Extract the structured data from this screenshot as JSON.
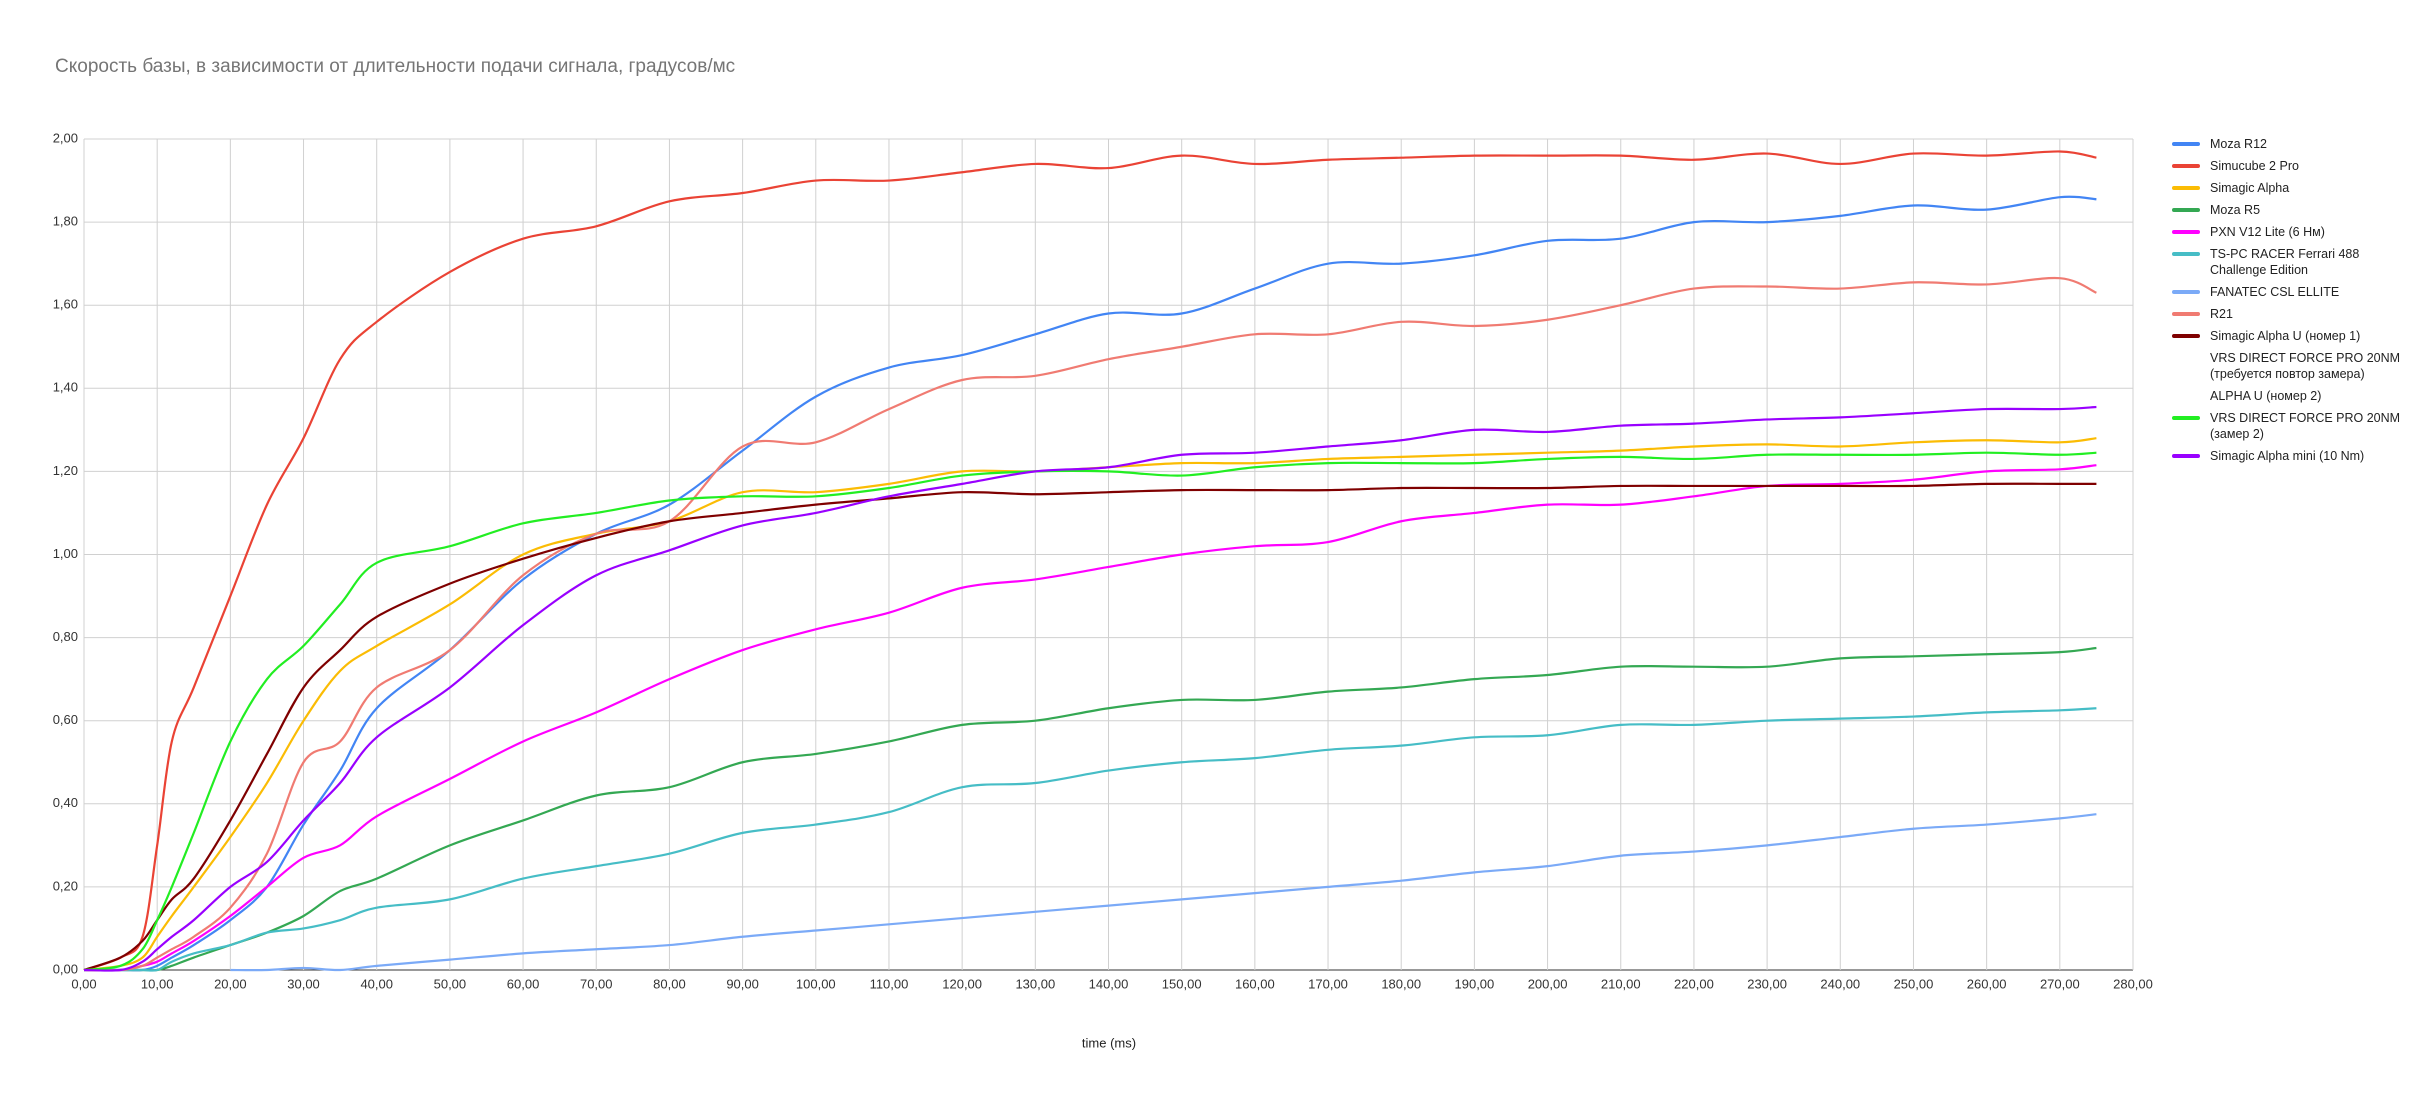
{
  "chart_data": {
    "type": "line",
    "title": "Скорость базы, в зависимости от длительности подачи сигнала, градусов/мс",
    "x_label": "time (ms)",
    "x": [
      0,
      5,
      8,
      10,
      12,
      15,
      20,
      25,
      30,
      35,
      40,
      50,
      60,
      70,
      80,
      90,
      100,
      110,
      120,
      130,
      140,
      150,
      160,
      170,
      180,
      190,
      200,
      210,
      220,
      230,
      240,
      250,
      260,
      270,
      275
    ],
    "xlim": [
      0,
      280
    ],
    "xticks": [
      {
        "value": 0,
        "label": "0,00"
      },
      {
        "value": 10,
        "label": "10,00"
      },
      {
        "value": 20,
        "label": "20,00"
      },
      {
        "value": 30,
        "label": "30,00"
      },
      {
        "value": 40,
        "label": "40,00"
      },
      {
        "value": 50,
        "label": "50,00"
      },
      {
        "value": 60,
        "label": "60,00"
      },
      {
        "value": 70,
        "label": "70,00"
      },
      {
        "value": 80,
        "label": "80,00"
      },
      {
        "value": 90,
        "label": "90,00"
      },
      {
        "value": 100,
        "label": "100,00"
      },
      {
        "value": 110,
        "label": "110,00"
      },
      {
        "value": 120,
        "label": "120,00"
      },
      {
        "value": 130,
        "label": "130,00"
      },
      {
        "value": 140,
        "label": "140,00"
      },
      {
        "value": 150,
        "label": "150,00"
      },
      {
        "value": 160,
        "label": "160,00"
      },
      {
        "value": 170,
        "label": "170,00"
      },
      {
        "value": 180,
        "label": "180,00"
      },
      {
        "value": 190,
        "label": "190,00"
      },
      {
        "value": 200,
        "label": "200,00"
      },
      {
        "value": 210,
        "label": "210,00"
      },
      {
        "value": 220,
        "label": "220,00"
      },
      {
        "value": 230,
        "label": "230,00"
      },
      {
        "value": 240,
        "label": "240,00"
      },
      {
        "value": 250,
        "label": "250,00"
      },
      {
        "value": 260,
        "label": "260,00"
      },
      {
        "value": 270,
        "label": "270,00"
      },
      {
        "value": 280,
        "label": "280,00"
      }
    ],
    "ylim": [
      0,
      2
    ],
    "yticks": [
      {
        "value": 0,
        "label": "0,00"
      },
      {
        "value": 0.2,
        "label": "0,20"
      },
      {
        "value": 0.4,
        "label": "0,40"
      },
      {
        "value": 0.6,
        "label": "0,60"
      },
      {
        "value": 0.8,
        "label": "0,80"
      },
      {
        "value": 1,
        "label": "1,00"
      },
      {
        "value": 1.2,
        "label": "1,20"
      },
      {
        "value": 1.4,
        "label": "1,40"
      },
      {
        "value": 1.6,
        "label": "1,60"
      },
      {
        "value": 1.8,
        "label": "1,80"
      },
      {
        "value": 2,
        "label": "2,00"
      }
    ],
    "grid": true,
    "legend": "right",
    "series": [
      {
        "name": "Moza R12",
        "color": "#4285f4",
        "values": [
          0,
          0,
          0,
          0.01,
          0.03,
          0.06,
          0.12,
          0.2,
          0.35,
          0.48,
          0.63,
          0.77,
          0.94,
          1.05,
          1.12,
          1.25,
          1.38,
          1.45,
          1.48,
          1.53,
          1.58,
          1.58,
          1.64,
          1.7,
          1.7,
          1.72,
          1.755,
          1.76,
          1.8,
          1.8,
          1.815,
          1.84,
          1.83,
          1.86,
          1.855
        ]
      },
      {
        "name": "Simucube 2 Pro",
        "color": "#ea4335",
        "values": [
          0,
          0.03,
          0.08,
          0.3,
          0.55,
          0.68,
          0.9,
          1.12,
          1.28,
          1.47,
          1.56,
          1.68,
          1.76,
          1.79,
          1.85,
          1.87,
          1.9,
          1.9,
          1.92,
          1.94,
          1.93,
          1.96,
          1.94,
          1.95,
          1.955,
          1.96,
          1.96,
          1.96,
          1.95,
          1.965,
          1.94,
          1.965,
          1.96,
          1.97,
          1.955
        ]
      },
      {
        "name": "Simagic Alpha",
        "color": "#fbbc04",
        "values": [
          0,
          0.01,
          0.03,
          0.08,
          0.13,
          0.2,
          0.32,
          0.45,
          0.6,
          0.72,
          0.78,
          0.88,
          1.0,
          1.05,
          1.08,
          1.15,
          1.15,
          1.17,
          1.2,
          1.2,
          1.21,
          1.22,
          1.22,
          1.23,
          1.235,
          1.24,
          1.245,
          1.25,
          1.26,
          1.265,
          1.26,
          1.27,
          1.275,
          1.27,
          1.28
        ]
      },
      {
        "name": "Moza R5",
        "color": "#34a853",
        "values": [
          0,
          0,
          0,
          0,
          0.01,
          0.03,
          0.06,
          0.09,
          0.13,
          0.19,
          0.22,
          0.3,
          0.36,
          0.42,
          0.44,
          0.5,
          0.52,
          0.55,
          0.59,
          0.6,
          0.63,
          0.65,
          0.65,
          0.67,
          0.68,
          0.7,
          0.71,
          0.73,
          0.73,
          0.73,
          0.75,
          0.755,
          0.76,
          0.765,
          0.775
        ]
      },
      {
        "name": "PXN V12 Lite (6 Нм)",
        "color": "#ff00ff",
        "values": [
          0,
          0,
          0.01,
          0.02,
          0.04,
          0.07,
          0.13,
          0.2,
          0.27,
          0.3,
          0.37,
          0.46,
          0.55,
          0.62,
          0.7,
          0.77,
          0.82,
          0.86,
          0.92,
          0.94,
          0.97,
          1.0,
          1.02,
          1.03,
          1.08,
          1.1,
          1.12,
          1.12,
          1.14,
          1.165,
          1.17,
          1.18,
          1.2,
          1.205,
          1.215
        ]
      },
      {
        "name": "TS-PC RACER Ferrari 488 Challenge Edition",
        "color": "#46bdc6",
        "values": [
          0,
          0,
          0,
          0,
          0.02,
          0.04,
          0.06,
          0.09,
          0.1,
          0.12,
          0.15,
          0.17,
          0.22,
          0.25,
          0.28,
          0.33,
          0.35,
          0.38,
          0.44,
          0.45,
          0.48,
          0.5,
          0.51,
          0.53,
          0.54,
          0.56,
          0.565,
          0.59,
          0.59,
          0.6,
          0.605,
          0.61,
          0.62,
          0.625,
          0.63
        ]
      },
      {
        "name": "FANATEC CSL ELLITE",
        "color": "#7baaf7",
        "values": [
          null,
          null,
          null,
          null,
          null,
          null,
          0,
          0,
          0.005,
          0,
          0.01,
          0.025,
          0.04,
          0.05,
          0.06,
          0.08,
          0.095,
          0.11,
          0.125,
          0.14,
          0.155,
          0.17,
          0.185,
          0.2,
          0.215,
          0.235,
          0.25,
          0.275,
          0.285,
          0.3,
          0.32,
          0.34,
          0.35,
          0.365,
          0.375
        ]
      },
      {
        "name": "R21",
        "color": "#f07b72",
        "values": [
          0,
          0,
          0.01,
          0.03,
          0.05,
          0.08,
          0.15,
          0.28,
          0.5,
          0.55,
          0.68,
          0.77,
          0.95,
          1.05,
          1.08,
          1.26,
          1.27,
          1.35,
          1.42,
          1.43,
          1.47,
          1.5,
          1.53,
          1.53,
          1.56,
          1.55,
          1.565,
          1.6,
          1.64,
          1.645,
          1.64,
          1.655,
          1.65,
          1.665,
          1.63
        ]
      },
      {
        "name": "Simagic Alpha U (номер 1)",
        "color": "#7f0000",
        "values": [
          0,
          0.03,
          0.07,
          0.12,
          0.17,
          0.22,
          0.36,
          0.52,
          0.68,
          0.77,
          0.85,
          0.93,
          0.99,
          1.04,
          1.08,
          1.1,
          1.12,
          1.135,
          1.15,
          1.145,
          1.15,
          1.155,
          1.155,
          1.155,
          1.16,
          1.16,
          1.16,
          1.165,
          1.165,
          1.165,
          1.165,
          1.165,
          1.17,
          1.17,
          1.17
        ]
      },
      {
        "name": "VRS DIRECT FORCE PRO 20NM (требуется повтор замера)",
        "color": null,
        "values": [
          null,
          null,
          null,
          null,
          null,
          null,
          null,
          null,
          null,
          null,
          null,
          null,
          null,
          null,
          null,
          null,
          null,
          null,
          null,
          null,
          null,
          null,
          null,
          null,
          null,
          null,
          null,
          null,
          null,
          null,
          null,
          null,
          null,
          null,
          null
        ]
      },
      {
        "name": "ALPHA U (номер 2)",
        "color": null,
        "values": [
          null,
          null,
          null,
          null,
          null,
          null,
          null,
          null,
          null,
          null,
          null,
          null,
          null,
          null,
          null,
          null,
          null,
          null,
          null,
          null,
          null,
          null,
          null,
          null,
          null,
          null,
          null,
          null,
          null,
          null,
          null,
          null,
          null,
          null,
          null
        ]
      },
      {
        "name": "VRS DIRECT FORCE PRO 20NM (замер 2)",
        "color": "#22ee22",
        "values": [
          0,
          0.01,
          0.05,
          0.12,
          0.2,
          0.33,
          0.55,
          0.7,
          0.78,
          0.88,
          0.98,
          1.02,
          1.075,
          1.1,
          1.13,
          1.14,
          1.14,
          1.16,
          1.19,
          1.2,
          1.2,
          1.19,
          1.21,
          1.22,
          1.22,
          1.22,
          1.23,
          1.235,
          1.23,
          1.24,
          1.24,
          1.24,
          1.245,
          1.24,
          1.245
        ]
      },
      {
        "name": "Simagic Alpha mini (10 Nm)",
        "color": "#9900ff",
        "values": [
          0,
          0,
          0.02,
          0.05,
          0.08,
          0.12,
          0.2,
          0.26,
          0.36,
          0.45,
          0.56,
          0.68,
          0.83,
          0.95,
          1.01,
          1.07,
          1.1,
          1.14,
          1.17,
          1.2,
          1.21,
          1.24,
          1.245,
          1.26,
          1.275,
          1.3,
          1.295,
          1.31,
          1.315,
          1.325,
          1.33,
          1.34,
          1.35,
          1.35,
          1.355
        ]
      }
    ]
  }
}
